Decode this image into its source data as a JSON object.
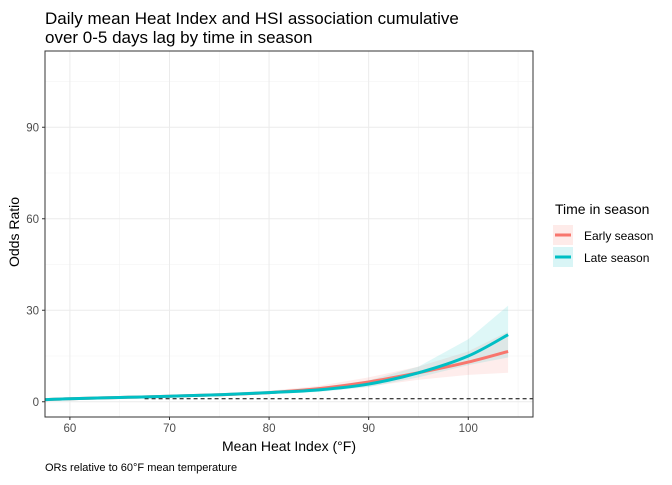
{
  "chart_data": {
    "type": "line",
    "title_lines": [
      "Daily mean Heat Index and HSI association cumulative",
      "over 0-5 days lag by time in season"
    ],
    "xlabel": "Mean Heat Index (°F)",
    "ylabel": "Odds Ratio",
    "caption": "ORs relative to 60°F mean temperature",
    "xlim": [
      57.5,
      106.5
    ],
    "ylim": [
      -5,
      115
    ],
    "x_ticks": [
      60,
      70,
      80,
      90,
      100
    ],
    "y_ticks": [
      0,
      30,
      60,
      90
    ],
    "grid": true,
    "reference_line": {
      "y": 1,
      "style": "dashed",
      "color": "#000000"
    },
    "legend": {
      "title": "Time in season",
      "position": "right"
    },
    "series": [
      {
        "name": "Early season",
        "color": "#F8766D",
        "x": [
          57.5,
          60,
          65,
          70,
          75,
          80,
          85,
          90,
          95,
          100,
          104
        ],
        "y": [
          0.7,
          1.0,
          1.4,
          1.8,
          2.3,
          3.0,
          4.3,
          6.5,
          9.5,
          13.0,
          16.5
        ],
        "ci_lower": [
          0.5,
          1.0,
          1.2,
          1.5,
          1.9,
          2.5,
          3.4,
          5.0,
          7.2,
          8.8,
          9.5
        ],
        "ci_upper": [
          0.9,
          1.0,
          1.6,
          2.1,
          2.8,
          3.6,
          5.2,
          8.0,
          11.5,
          16.5,
          23.0
        ]
      },
      {
        "name": "Late season",
        "color": "#00BFC4",
        "x": [
          57.5,
          60,
          65,
          70,
          75,
          80,
          85,
          90,
          95,
          100,
          104
        ],
        "y": [
          0.7,
          1.0,
          1.4,
          1.8,
          2.3,
          3.0,
          3.9,
          5.8,
          9.5,
          15.0,
          22.0
        ],
        "ci_lower": [
          0.5,
          1.0,
          1.2,
          1.5,
          1.9,
          2.5,
          3.2,
          4.8,
          8.0,
          12.0,
          14.5
        ],
        "ci_upper": [
          0.9,
          1.0,
          1.6,
          2.1,
          2.8,
          3.5,
          4.7,
          7.0,
          11.5,
          20.5,
          31.5
        ]
      }
    ]
  }
}
